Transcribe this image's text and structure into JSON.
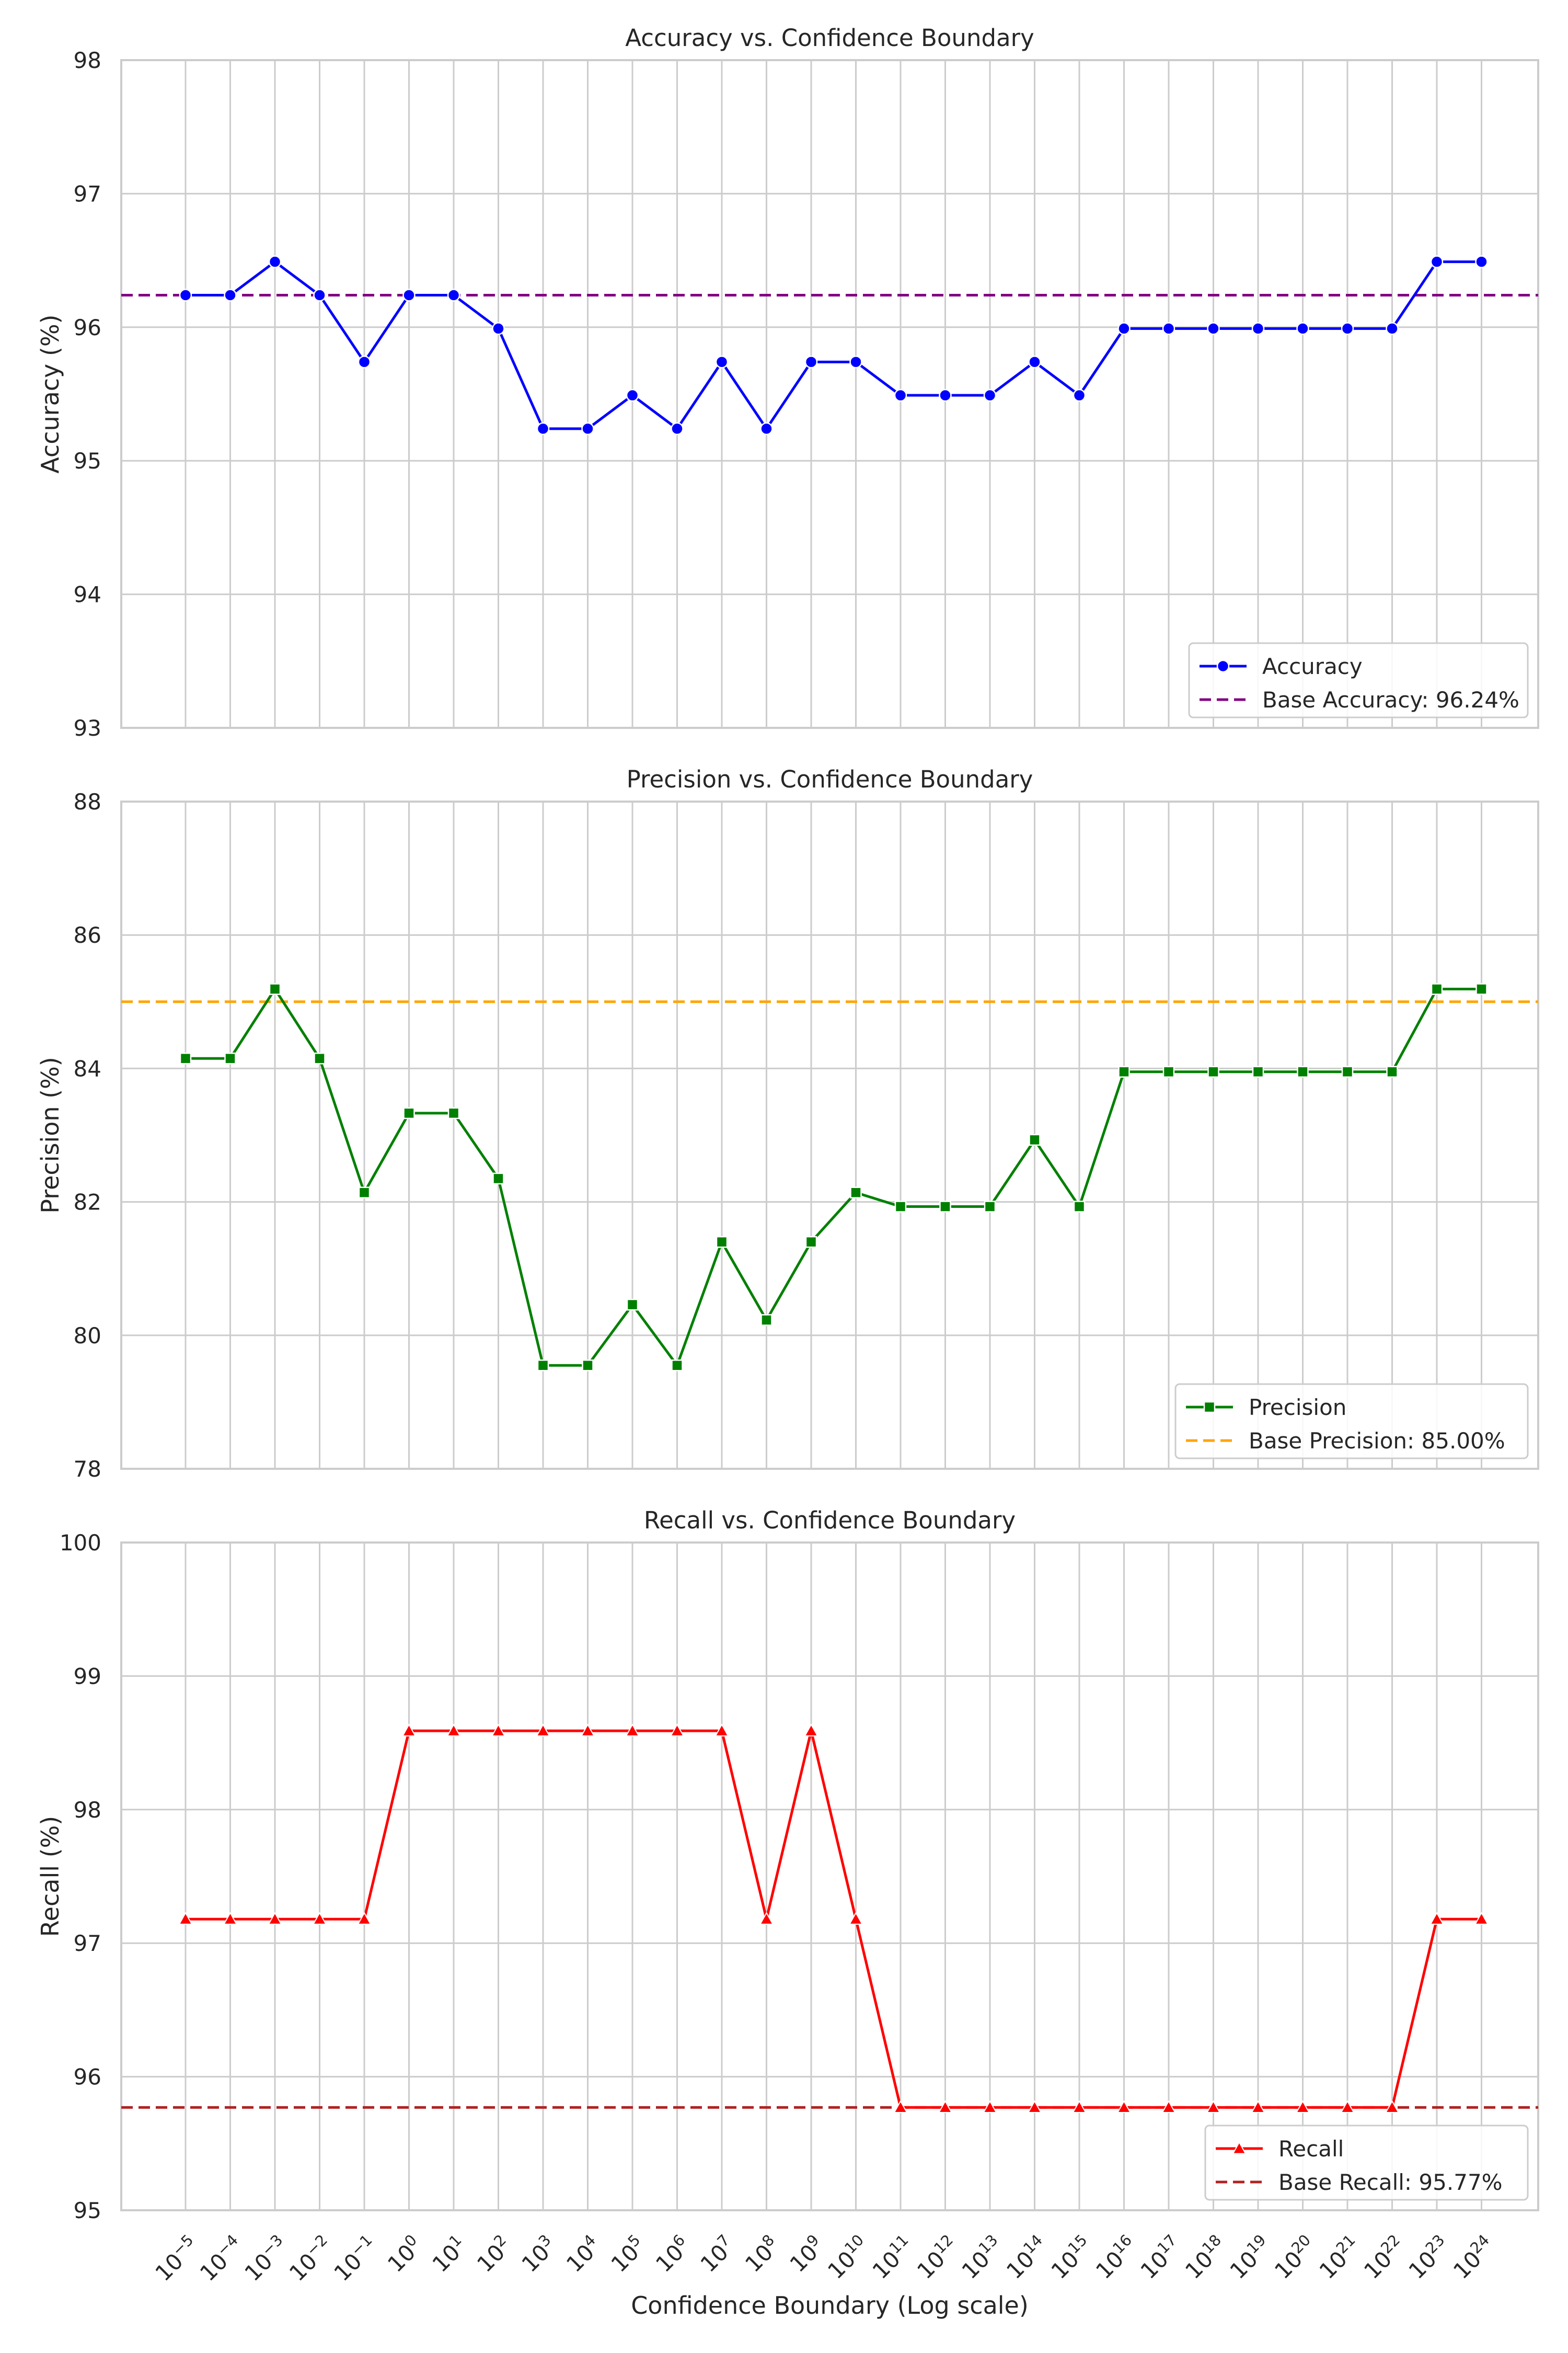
{
  "chart_data": [
    {
      "type": "line",
      "title": "Accuracy vs. Confidence Boundary",
      "xlabel": "",
      "ylabel": "Accuracy (%)",
      "x_scale": "log",
      "x": [
        "10^-5",
        "10^-4",
        "10^-3",
        "10^-2",
        "10^-1",
        "10^0",
        "10^1",
        "10^2",
        "10^3",
        "10^4",
        "10^5",
        "10^6",
        "10^7",
        "10^8",
        "10^9",
        "10^10",
        "10^11",
        "10^12",
        "10^13",
        "10^14",
        "10^15",
        "10^16",
        "10^17",
        "10^18",
        "10^19",
        "10^20",
        "10^21",
        "10^22",
        "10^23",
        "10^24"
      ],
      "x_tick_labels": [
        "10⁻⁵",
        "10⁻⁴",
        "10⁻³",
        "10⁻²",
        "10⁻¹",
        "10⁰",
        "10¹",
        "10²",
        "10³",
        "10⁴",
        "10⁵",
        "10⁶",
        "10⁷",
        "10⁸",
        "10⁹",
        "10¹⁰",
        "10¹¹",
        "10¹²",
        "10¹³",
        "10¹⁴",
        "10¹⁵",
        "10¹⁶",
        "10¹⁷",
        "10¹⁸",
        "10¹⁹",
        "10²⁰",
        "10²¹",
        "10²²",
        "10²³",
        "10²⁴"
      ],
      "show_x_tick_labels": false,
      "ylim": [
        93,
        98
      ],
      "y_ticks": [
        93,
        94,
        95,
        96,
        97,
        98
      ],
      "grid": true,
      "legend_position": "lower right",
      "series": [
        {
          "name": "Accuracy",
          "color": "#0000ff",
          "marker": "circle",
          "values": [
            96.24,
            96.24,
            96.49,
            96.24,
            95.74,
            96.24,
            96.24,
            95.99,
            95.24,
            95.24,
            95.49,
            95.24,
            95.74,
            95.24,
            95.74,
            95.74,
            95.49,
            95.49,
            95.49,
            95.74,
            95.49,
            95.99,
            95.99,
            95.99,
            95.99,
            95.99,
            95.99,
            95.99,
            96.49,
            96.49
          ]
        }
      ],
      "baseline": {
        "name": "Base Accuracy: 96.24%",
        "value": 96.24,
        "color": "#800080",
        "style": "dashed"
      }
    },
    {
      "type": "line",
      "title": "Precision vs. Confidence Boundary",
      "xlabel": "",
      "ylabel": "Precision (%)",
      "x_scale": "log",
      "show_x_tick_labels": false,
      "ylim": [
        78,
        88
      ],
      "y_ticks": [
        78,
        80,
        82,
        84,
        86,
        88
      ],
      "grid": true,
      "legend_position": "lower right",
      "series": [
        {
          "name": "Precision",
          "color": "#008000",
          "marker": "square",
          "values": [
            84.15,
            84.15,
            85.19,
            84.15,
            82.14,
            83.33,
            83.33,
            82.35,
            79.55,
            79.55,
            80.46,
            79.55,
            81.4,
            80.23,
            81.4,
            82.14,
            81.93,
            81.93,
            81.93,
            82.93,
            81.93,
            83.95,
            83.95,
            83.95,
            83.95,
            83.95,
            83.95,
            83.95,
            85.19,
            85.19
          ]
        }
      ],
      "baseline": {
        "name": "Base Precision: 85.00%",
        "value": 85.0,
        "color": "#ffa500",
        "style": "dashed"
      }
    },
    {
      "type": "line",
      "title": "Recall vs. Confidence Boundary",
      "xlabel": "Confidence Boundary (Log scale)",
      "ylabel": "Recall (%)",
      "x_scale": "log",
      "show_x_tick_labels": true,
      "ylim": [
        95,
        100
      ],
      "y_ticks": [
        95,
        96,
        97,
        98,
        99,
        100
      ],
      "grid": true,
      "legend_position": "lower right",
      "series": [
        {
          "name": "Recall",
          "color": "#ff0000",
          "marker": "triangle",
          "values": [
            97.18,
            97.18,
            97.18,
            97.18,
            97.18,
            98.59,
            98.59,
            98.59,
            98.59,
            98.59,
            98.59,
            98.59,
            98.59,
            97.18,
            98.59,
            97.18,
            95.77,
            95.77,
            95.77,
            95.77,
            95.77,
            95.77,
            95.77,
            95.77,
            95.77,
            95.77,
            95.77,
            95.77,
            97.18,
            97.18
          ]
        }
      ],
      "baseline": {
        "name": "Base Recall: 95.77%",
        "value": 95.77,
        "color": "#b22222",
        "style": "dashed"
      }
    }
  ]
}
